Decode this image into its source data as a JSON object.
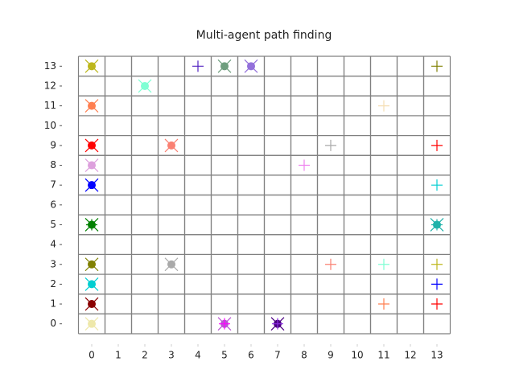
{
  "chart_data": {
    "type": "scatter",
    "title": "Multi-agent path finding",
    "xlim": [
      -0.5,
      13.5
    ],
    "ylim": [
      -0.5,
      13.5
    ],
    "xticks": [
      0,
      1,
      2,
      3,
      4,
      5,
      6,
      7,
      8,
      9,
      10,
      11,
      12,
      13
    ],
    "yticks": [
      0,
      1,
      2,
      3,
      4,
      5,
      6,
      7,
      8,
      9,
      10,
      11,
      12,
      13
    ],
    "grid": true,
    "grid_color": "#808080",
    "series": [
      {
        "marker": "circle-x",
        "x": [
          0,
          5,
          6,
          2,
          0,
          0,
          3,
          0,
          0,
          0,
          13,
          0,
          3,
          0,
          0,
          0,
          5,
          7
        ],
        "y": [
          13,
          13,
          13,
          12,
          11,
          9,
          9,
          8,
          7,
          5,
          5,
          3,
          3,
          2,
          1,
          0,
          0,
          0
        ],
        "colors": [
          "#bdb71b",
          "#6e9e7e",
          "#9370db",
          "#7fffd4",
          "#ff7f50",
          "#ff0000",
          "#fa8072",
          "#dda0dd",
          "#0000ff",
          "#008000",
          "#20b2aa",
          "#808000",
          "#a9a9a9",
          "#00ced1",
          "#8b0000",
          "#eee8aa",
          "#ba55d3",
          "#4b0082"
        ]
      },
      {
        "marker": "plus",
        "x": [
          4,
          13,
          11,
          9,
          13,
          8,
          13,
          0,
          13,
          9,
          11,
          13,
          13,
          11,
          13,
          5,
          7
        ],
        "y": [
          13,
          13,
          11,
          9,
          9,
          8,
          7,
          5,
          5,
          3,
          3,
          3,
          2,
          1,
          1,
          0,
          0
        ],
        "colors": [
          "#5020c0",
          "#808000",
          "#f5deb3",
          "#a9a9a9",
          "#ff0000",
          "#ee82ee",
          "#00ced1",
          "#008000",
          "#20b2aa",
          "#fa8072",
          "#7fffd4",
          "#bdb71b",
          "#0000ff",
          "#ff7f50",
          "#ff0000",
          "#ff00ff",
          "#8a2be2"
        ]
      }
    ]
  }
}
